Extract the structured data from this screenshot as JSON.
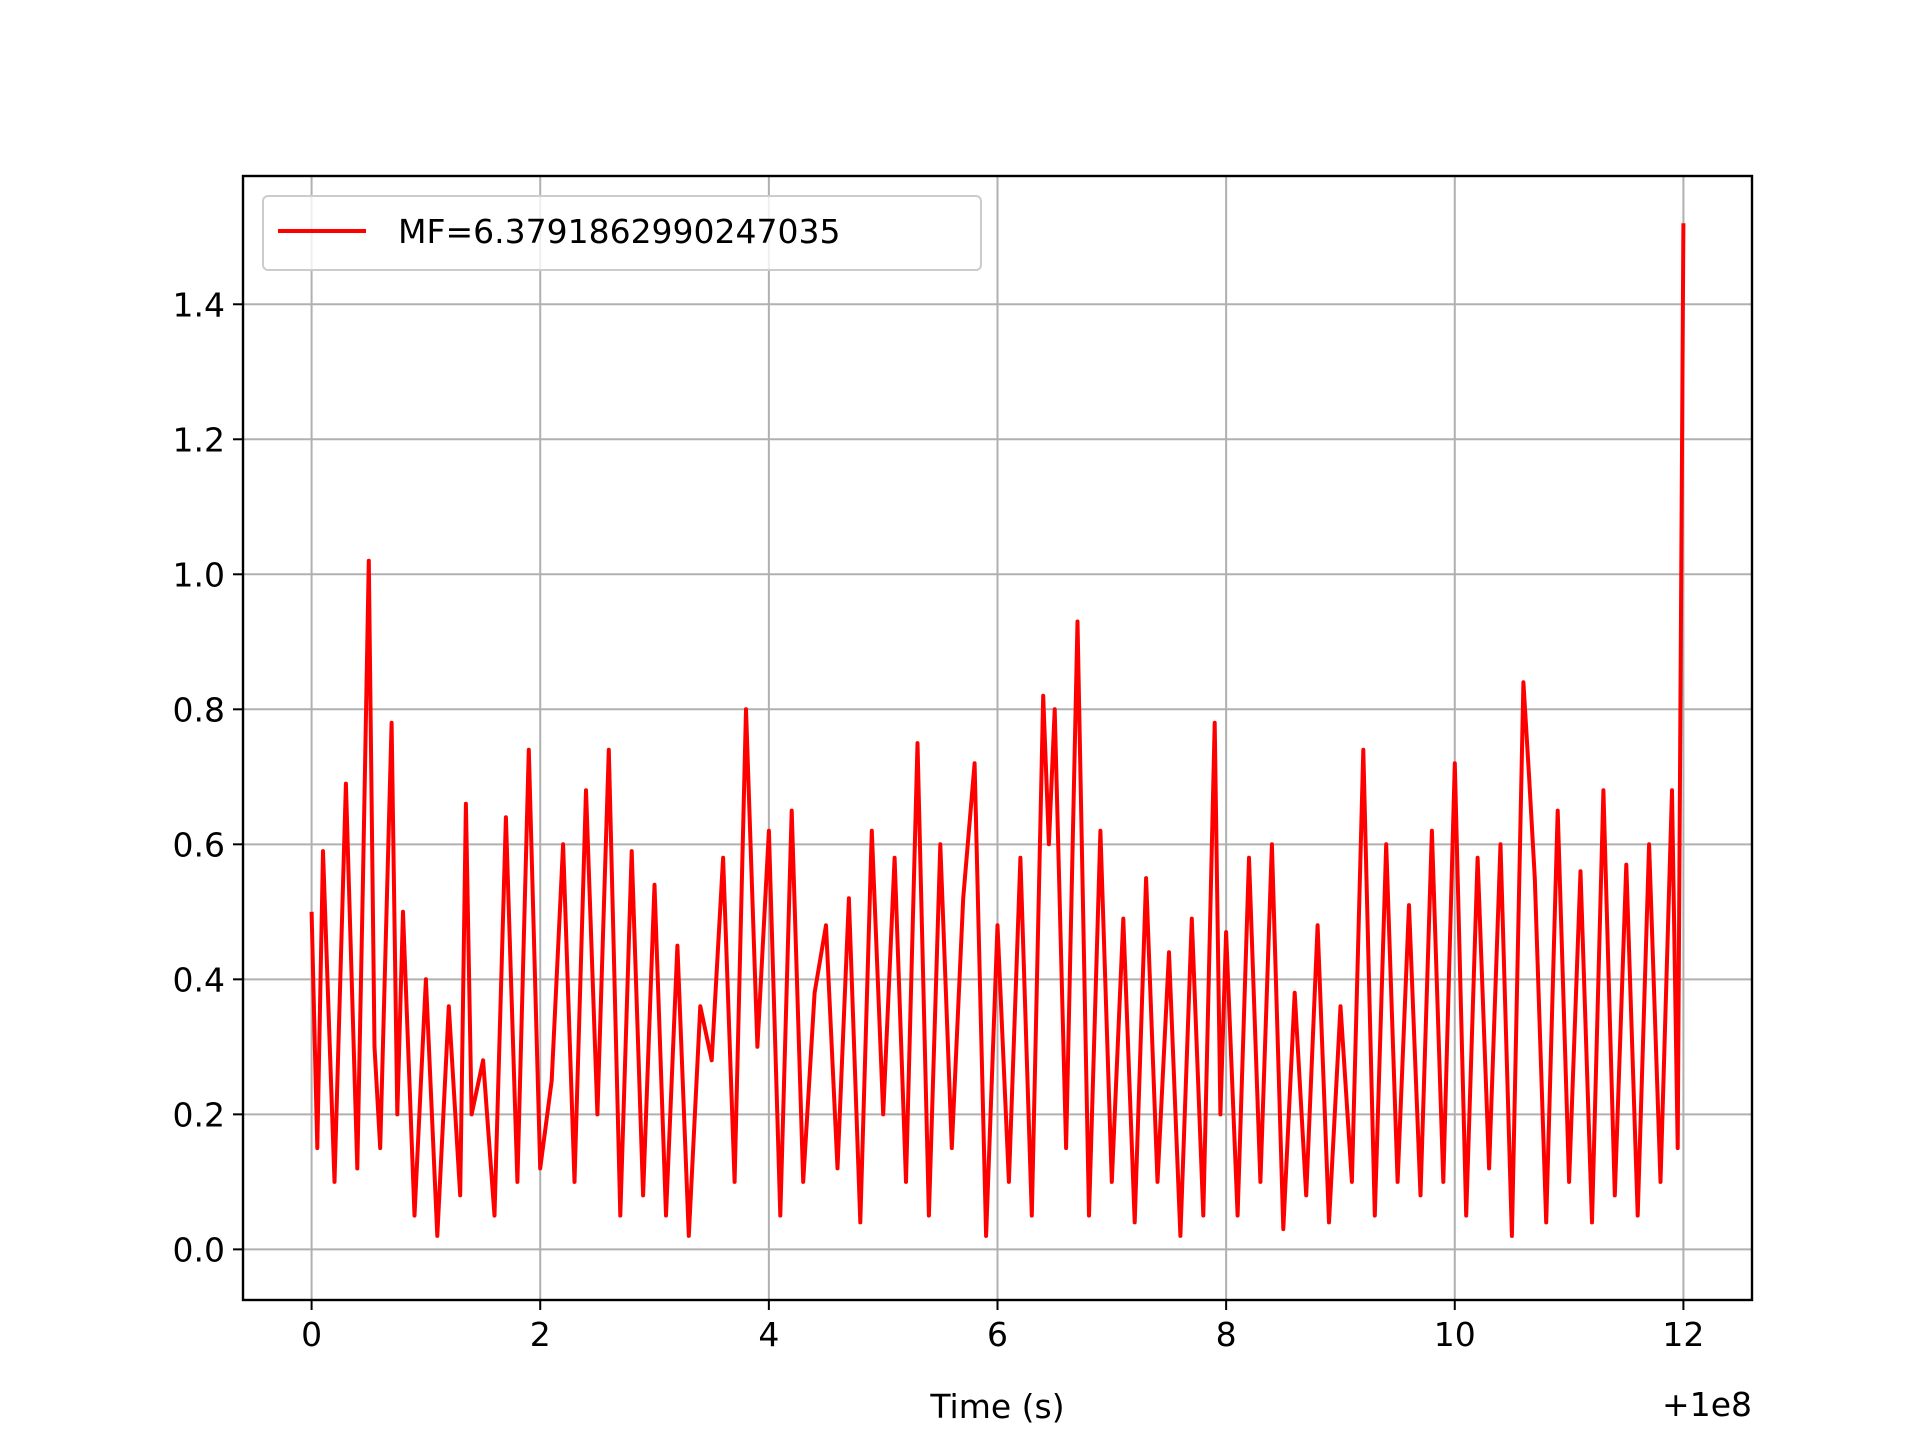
{
  "chart_data": {
    "type": "line",
    "title": "",
    "xlabel": "Time (s)",
    "ylabel": "",
    "x_offset_label": "+1e8",
    "xlim": [
      -0.6,
      12.6
    ],
    "ylim": [
      -0.075,
      1.59
    ],
    "xticks": [
      0,
      2,
      4,
      6,
      8,
      10,
      12
    ],
    "xtick_labels": [
      "0",
      "2",
      "4",
      "6",
      "8",
      "10",
      "12"
    ],
    "yticks": [
      0.0,
      0.2,
      0.4,
      0.6,
      0.8,
      1.0,
      1.2,
      1.4
    ],
    "ytick_labels": [
      "0.0",
      "0.2",
      "0.4",
      "0.6",
      "0.8",
      "1.0",
      "1.2",
      "1.4"
    ],
    "grid": true,
    "legend_position": "top-left",
    "colors": {
      "series": "#ff0000",
      "grid": "#b0b0b0"
    },
    "series": [
      {
        "name": "MF=6.3791862990247035",
        "x": [
          0.0,
          0.05,
          0.1,
          0.2,
          0.3,
          0.4,
          0.45,
          0.5,
          0.55,
          0.6,
          0.7,
          0.75,
          0.8,
          0.9,
          1.0,
          1.1,
          1.2,
          1.3,
          1.35,
          1.4,
          1.5,
          1.6,
          1.7,
          1.8,
          1.9,
          2.0,
          2.1,
          2.2,
          2.3,
          2.4,
          2.5,
          2.6,
          2.7,
          2.8,
          2.9,
          3.0,
          3.1,
          3.2,
          3.3,
          3.4,
          3.5,
          3.6,
          3.7,
          3.8,
          3.9,
          4.0,
          4.1,
          4.2,
          4.3,
          4.4,
          4.5,
          4.6,
          4.7,
          4.8,
          4.9,
          5.0,
          5.1,
          5.2,
          5.3,
          5.4,
          5.5,
          5.6,
          5.7,
          5.8,
          5.9,
          6.0,
          6.1,
          6.2,
          6.3,
          6.4,
          6.45,
          6.5,
          6.6,
          6.7,
          6.8,
          6.9,
          7.0,
          7.1,
          7.2,
          7.3,
          7.4,
          7.5,
          7.6,
          7.7,
          7.8,
          7.9,
          7.95,
          8.0,
          8.1,
          8.2,
          8.3,
          8.4,
          8.5,
          8.6,
          8.7,
          8.8,
          8.9,
          9.0,
          9.1,
          9.2,
          9.3,
          9.4,
          9.5,
          9.6,
          9.7,
          9.8,
          9.9,
          10.0,
          10.1,
          10.2,
          10.3,
          10.4,
          10.5,
          10.6,
          10.65,
          10.7,
          10.8,
          10.9,
          11.0,
          11.1,
          11.2,
          11.3,
          11.4,
          11.5,
          11.6,
          11.7,
          11.8,
          11.9,
          11.95,
          12.0
        ],
        "y": [
          0.5,
          0.15,
          0.59,
          0.1,
          0.69,
          0.12,
          0.55,
          1.02,
          0.3,
          0.15,
          0.78,
          0.2,
          0.5,
          0.05,
          0.4,
          0.02,
          0.36,
          0.08,
          0.66,
          0.2,
          0.28,
          0.05,
          0.64,
          0.1,
          0.74,
          0.12,
          0.25,
          0.6,
          0.1,
          0.68,
          0.2,
          0.74,
          0.05,
          0.59,
          0.08,
          0.54,
          0.05,
          0.45,
          0.02,
          0.36,
          0.28,
          0.58,
          0.1,
          0.8,
          0.3,
          0.62,
          0.05,
          0.65,
          0.1,
          0.38,
          0.48,
          0.12,
          0.52,
          0.04,
          0.62,
          0.2,
          0.58,
          0.1,
          0.75,
          0.05,
          0.6,
          0.15,
          0.52,
          0.72,
          0.02,
          0.48,
          0.1,
          0.58,
          0.05,
          0.82,
          0.6,
          0.8,
          0.15,
          0.93,
          0.05,
          0.62,
          0.1,
          0.49,
          0.04,
          0.55,
          0.1,
          0.44,
          0.02,
          0.49,
          0.05,
          0.78,
          0.2,
          0.47,
          0.05,
          0.58,
          0.1,
          0.6,
          0.03,
          0.38,
          0.08,
          0.48,
          0.04,
          0.36,
          0.1,
          0.74,
          0.05,
          0.6,
          0.1,
          0.51,
          0.08,
          0.62,
          0.1,
          0.72,
          0.05,
          0.58,
          0.12,
          0.6,
          0.02,
          0.84,
          0.7,
          0.55,
          0.04,
          0.65,
          0.1,
          0.56,
          0.04,
          0.68,
          0.08,
          0.57,
          0.05,
          0.6,
          0.1,
          0.68,
          0.15,
          1.52
        ]
      }
    ]
  }
}
